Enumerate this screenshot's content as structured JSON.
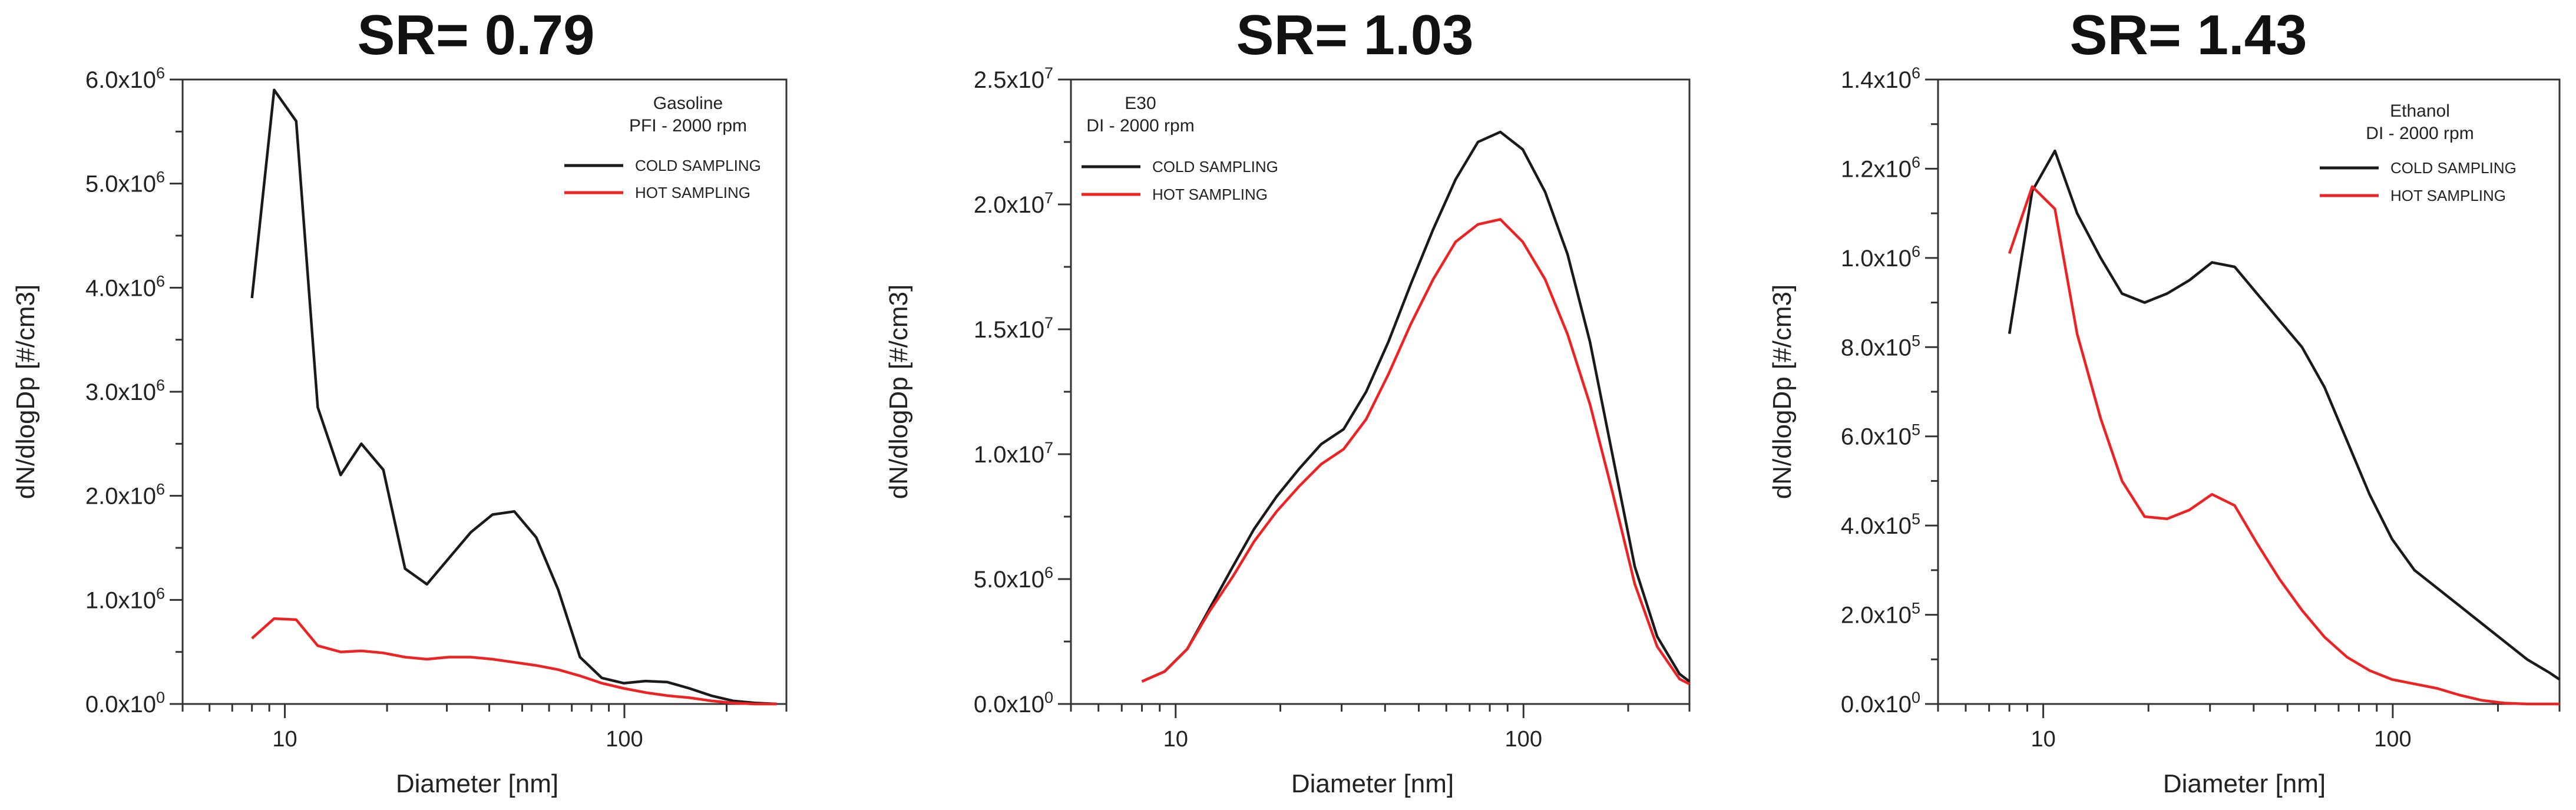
{
  "chart_data": [
    {
      "type": "line",
      "title": "SR= 0.79",
      "xlabel": "Diameter [nm]",
      "ylabel": "dN/dlogDp [#/cm3]",
      "xscale": "log",
      "xlim": [
        5,
        300
      ],
      "ylim": [
        0,
        6000000
      ],
      "xticks": [
        {
          "value": 10,
          "label": "10"
        },
        {
          "value": 100,
          "label": "100"
        }
      ],
      "yticks": [
        {
          "value": 0,
          "mantissa": "0.0x10",
          "exp": "0"
        },
        {
          "value": 1000000,
          "mantissa": "1.0x10",
          "exp": "6"
        },
        {
          "value": 2000000,
          "mantissa": "2.0x10",
          "exp": "6"
        },
        {
          "value": 3000000,
          "mantissa": "3.0x10",
          "exp": "6"
        },
        {
          "value": 4000000,
          "mantissa": "4.0x10",
          "exp": "6"
        },
        {
          "value": 5000000,
          "mantissa": "5.0x10",
          "exp": "6"
        },
        {
          "value": 6000000,
          "mantissa": "6.0x10",
          "exp": "6"
        }
      ],
      "annotation": [
        "Gasoline",
        "PFI - 2000 rpm"
      ],
      "legend_position": "top-right",
      "series": [
        {
          "name": "COLD SAMPLING",
          "color": "#1a1a1a",
          "x": [
            8,
            9.3,
            10.8,
            12.5,
            14.6,
            16.8,
            19.5,
            22.6,
            26.2,
            30.4,
            35.3,
            40.9,
            47.4,
            55,
            63.8,
            74,
            85.8,
            99.5,
            115.4,
            133.9,
            155.3,
            180.1,
            208.9,
            242.3,
            281
          ],
          "y": [
            3900000,
            5900000,
            5600000,
            2850000,
            2200000,
            2500000,
            2250000,
            1300000,
            1150000,
            1400000,
            1650000,
            1820000,
            1850000,
            1600000,
            1100000,
            450000,
            250000,
            200000,
            220000,
            210000,
            150000,
            80000,
            30000,
            10000,
            0
          ]
        },
        {
          "name": "HOT SAMPLING",
          "color": "#ee2222",
          "x": [
            8,
            9.3,
            10.8,
            12.5,
            14.6,
            16.8,
            19.5,
            22.6,
            26.2,
            30.4,
            35.3,
            40.9,
            47.4,
            55,
            63.8,
            74,
            85.8,
            99.5,
            115.4,
            133.9,
            155.3,
            180.1,
            208.9,
            242.3,
            281
          ],
          "y": [
            630000,
            820000,
            810000,
            560000,
            500000,
            510000,
            490000,
            450000,
            430000,
            450000,
            450000,
            430000,
            400000,
            370000,
            330000,
            270000,
            200000,
            150000,
            110000,
            80000,
            60000,
            30000,
            10000,
            0,
            0
          ]
        }
      ]
    },
    {
      "type": "line",
      "title": "SR= 1.03",
      "xlabel": "Diameter [nm]",
      "ylabel": "dN/dlogDp [#/cm3]",
      "xscale": "log",
      "xlim": [
        5,
        300
      ],
      "ylim": [
        0,
        25000000
      ],
      "xticks": [
        {
          "value": 10,
          "label": "10"
        },
        {
          "value": 100,
          "label": "100"
        }
      ],
      "yticks": [
        {
          "value": 0,
          "mantissa": "0.0x10",
          "exp": "0"
        },
        {
          "value": 5000000,
          "mantissa": "5.0x10",
          "exp": "6"
        },
        {
          "value": 10000000,
          "mantissa": "1.0x10",
          "exp": "7"
        },
        {
          "value": 15000000,
          "mantissa": "1.5x10",
          "exp": "7"
        },
        {
          "value": 20000000,
          "mantissa": "2.0x10",
          "exp": "7"
        },
        {
          "value": 25000000,
          "mantissa": "2.5x10",
          "exp": "7"
        }
      ],
      "annotation": [
        "E30",
        "DI - 2000 rpm"
      ],
      "legend_position": "top-left",
      "series": [
        {
          "name": "COLD SAMPLING",
          "color": "#1a1a1a",
          "x": [
            8,
            9.3,
            10.8,
            12.5,
            14.6,
            16.8,
            19.5,
            22.6,
            26.2,
            30.4,
            35.3,
            40.9,
            47.4,
            55,
            63.8,
            74,
            85.8,
            99.5,
            115.4,
            133.9,
            155.3,
            180.1,
            208.9,
            242.3,
            281,
            300
          ],
          "y": [
            900000,
            1300000,
            2200000,
            3800000,
            5500000,
            7000000,
            8300000,
            9400000,
            10400000,
            11000000,
            12500000,
            14500000,
            16800000,
            19000000,
            21000000,
            22500000,
            22900000,
            22200000,
            20500000,
            18000000,
            14500000,
            10000000,
            5500000,
            2700000,
            1200000,
            900000
          ]
        },
        {
          "name": "HOT SAMPLING",
          "color": "#ee2222",
          "x": [
            8,
            9.3,
            10.8,
            12.5,
            14.6,
            16.8,
            19.5,
            22.6,
            26.2,
            30.4,
            35.3,
            40.9,
            47.4,
            55,
            63.8,
            74,
            85.8,
            99.5,
            115.4,
            133.9,
            155.3,
            180.1,
            208.9,
            242.3,
            281,
            300
          ],
          "y": [
            900000,
            1300000,
            2200000,
            3700000,
            5100000,
            6500000,
            7700000,
            8700000,
            9600000,
            10200000,
            11400000,
            13200000,
            15200000,
            17000000,
            18500000,
            19200000,
            19400000,
            18500000,
            17000000,
            14800000,
            12000000,
            8500000,
            4800000,
            2300000,
            1000000,
            800000
          ]
        }
      ]
    },
    {
      "type": "line",
      "title": "SR= 1.43",
      "xlabel": "Diameter [nm]",
      "ylabel": "dN/dlogDp [#/cm3]",
      "xscale": "log",
      "xlim": [
        5,
        300
      ],
      "ylim": [
        0,
        1400000
      ],
      "xticks": [
        {
          "value": 10,
          "label": "10"
        },
        {
          "value": 100,
          "label": "100"
        }
      ],
      "yticks": [
        {
          "value": 0,
          "mantissa": "0.0x10",
          "exp": "0"
        },
        {
          "value": 200000,
          "mantissa": "2.0x10",
          "exp": "5"
        },
        {
          "value": 400000,
          "mantissa": "4.0x10",
          "exp": "5"
        },
        {
          "value": 600000,
          "mantissa": "6.0x10",
          "exp": "5"
        },
        {
          "value": 800000,
          "mantissa": "8.0x10",
          "exp": "5"
        },
        {
          "value": 1000000,
          "mantissa": "1.0x10",
          "exp": "6"
        },
        {
          "value": 1200000,
          "mantissa": "1.2x10",
          "exp": "6"
        },
        {
          "value": 1400000,
          "mantissa": "1.4x10",
          "exp": "6"
        }
      ],
      "annotation": [
        "Ethanol",
        "DI - 2000 rpm"
      ],
      "legend_position": "top-right",
      "series": [
        {
          "name": "COLD SAMPLING",
          "color": "#1a1a1a",
          "x": [
            8,
            9.3,
            10.8,
            12.5,
            14.6,
            16.8,
            19.5,
            22.6,
            26.2,
            30.4,
            35.3,
            40.9,
            47.4,
            55,
            63.8,
            74,
            85.8,
            99.5,
            115.4,
            133.9,
            155.3,
            180.1,
            208.9,
            242.3,
            281,
            300
          ],
          "y": [
            830000,
            1150000,
            1240000,
            1100000,
            1000000,
            920000,
            900000,
            920000,
            950000,
            990000,
            980000,
            920000,
            860000,
            800000,
            710000,
            590000,
            470000,
            370000,
            300000,
            260000,
            220000,
            180000,
            140000,
            100000,
            70000,
            55000
          ]
        },
        {
          "name": "HOT SAMPLING",
          "color": "#ee2222",
          "x": [
            8,
            9.3,
            10.8,
            12.5,
            14.6,
            16.8,
            19.5,
            22.6,
            26.2,
            30.4,
            35.3,
            40.9,
            47.4,
            55,
            63.8,
            74,
            85.8,
            99.5,
            115.4,
            133.9,
            155.3,
            180.1,
            208.9,
            242.3,
            281,
            300
          ],
          "y": [
            1010000,
            1160000,
            1110000,
            830000,
            640000,
            500000,
            420000,
            415000,
            435000,
            470000,
            445000,
            360000,
            280000,
            210000,
            150000,
            105000,
            75000,
            55000,
            45000,
            35000,
            20000,
            8000,
            2000,
            0,
            0,
            0
          ]
        }
      ]
    }
  ]
}
